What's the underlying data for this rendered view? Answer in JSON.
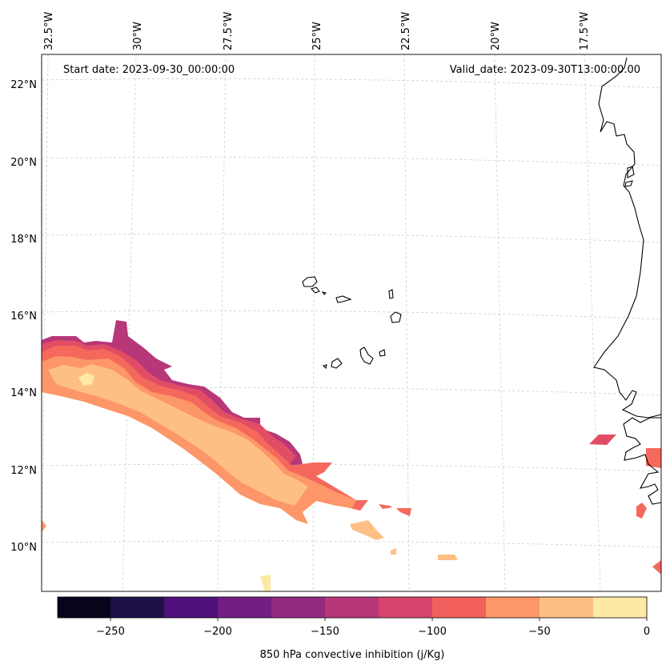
{
  "map": {
    "start_date_text": "Start date: 2023-09-30_00:00:00",
    "valid_date_text": "Valid_date: 2023-09-30T13:00:00.00",
    "lon_labels": [
      "32.5°W",
      "30°W",
      "27.5°W",
      "25°W",
      "22.5°W",
      "20°W",
      "17.5°W"
    ],
    "lat_labels": [
      "22°N",
      "20°N",
      "18°N",
      "16°N",
      "14°N",
      "12°N",
      "10°N"
    ],
    "field_colors": {
      "c_minus_125": "#b73779",
      "c_minus_100": "#e14d64",
      "c_minus_75": "#f4695c",
      "c_minus_50": "#fd9668",
      "c_minus_25": "#febf84",
      "c_0": "#fde9a4"
    }
  },
  "colorbar": {
    "label": "850 hPa convective inhibition (j/Kg)",
    "tick_labels": [
      "−250",
      "−200",
      "−150",
      "−100",
      "−50",
      "0"
    ],
    "bins": [
      "#06051b",
      "#1f1147",
      "#4f117b",
      "#721f81",
      "#932b80",
      "#b73779",
      "#d8456c",
      "#f1605d",
      "#fd9668",
      "#febf84",
      "#fde9a4"
    ]
  }
}
